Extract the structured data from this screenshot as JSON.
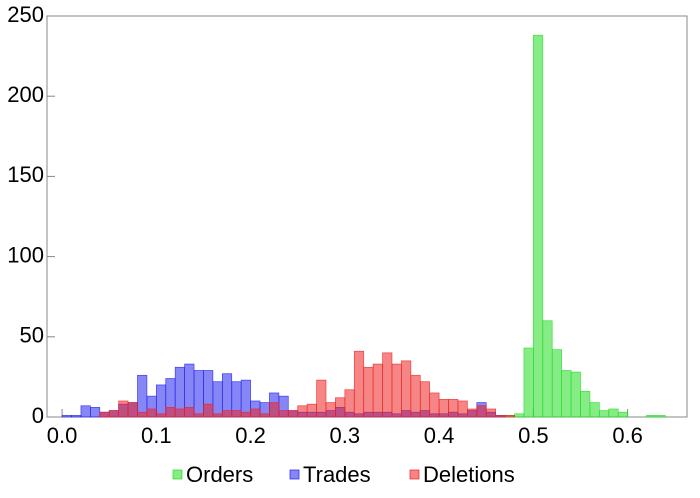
{
  "chart_data": {
    "type": "histogram",
    "bins": [
      0,
      0.01,
      0.02,
      0.03,
      0.04,
      0.05,
      0.06,
      0.07,
      0.08,
      0.09,
      0.1,
      0.11,
      0.12,
      0.13,
      0.14,
      0.15,
      0.16,
      0.17,
      0.18,
      0.19,
      0.2,
      0.21,
      0.22,
      0.23,
      0.24,
      0.25,
      0.26,
      0.27,
      0.28,
      0.29,
      0.3,
      0.31,
      0.32,
      0.33,
      0.34,
      0.35,
      0.36,
      0.37,
      0.38,
      0.39,
      0.4,
      0.41,
      0.42,
      0.43,
      0.44,
      0.45,
      0.46,
      0.47,
      0.48,
      0.49,
      0.5,
      0.51,
      0.52,
      0.53,
      0.54,
      0.55,
      0.56,
      0.57,
      0.58,
      0.59,
      0.6,
      0.61,
      0.62,
      0.63,
      0.64
    ],
    "series": [
      {
        "name": "Orders",
        "color": "#22dd22",
        "values": [
          0,
          0,
          0,
          0,
          0,
          0,
          0,
          0,
          0,
          0,
          0,
          0,
          0,
          0,
          0,
          0,
          0,
          0,
          0,
          0,
          0,
          0,
          0,
          0,
          0,
          0,
          0,
          0,
          0,
          0,
          0,
          0,
          0,
          0,
          0,
          0,
          0,
          0,
          0,
          0,
          0,
          0,
          0,
          0,
          0,
          0,
          0,
          1,
          2,
          43,
          238,
          60,
          42,
          29,
          28,
          16,
          9,
          4,
          5,
          3,
          0,
          0,
          1,
          1
        ]
      },
      {
        "name": "Trades",
        "color": "#2222ee",
        "values": [
          1,
          1,
          7,
          6,
          3,
          4,
          8,
          9,
          26,
          13,
          20,
          24,
          31,
          33,
          29,
          29,
          22,
          27,
          22,
          23,
          10,
          9,
          15,
          13,
          4,
          3,
          3,
          3,
          4,
          6,
          3,
          2,
          3,
          3,
          3,
          2,
          4,
          3,
          4,
          2,
          2,
          3,
          2,
          4,
          9,
          3,
          1,
          0,
          0,
          0,
          0,
          0,
          0,
          0,
          0,
          0,
          0,
          0,
          0,
          0,
          0,
          0,
          0,
          0
        ]
      },
      {
        "name": "Deletions",
        "color": "#ee2222",
        "values": [
          0,
          0,
          0,
          0,
          3,
          4,
          10,
          9,
          3,
          5,
          2,
          6,
          5,
          6,
          2,
          8,
          2,
          4,
          4,
          3,
          5,
          2,
          9,
          4,
          4,
          7,
          8,
          23,
          9,
          12,
          17,
          41,
          31,
          33,
          40,
          33,
          35,
          26,
          22,
          15,
          11,
          11,
          10,
          5,
          7,
          5,
          1,
          1,
          0,
          0,
          0,
          0,
          0,
          0,
          0,
          0,
          0,
          0,
          0,
          0,
          0,
          0,
          0,
          0
        ]
      }
    ],
    "xlim": [
      -0.016,
      0.663
    ],
    "ylim": [
      0,
      250
    ],
    "xticks": [
      {
        "value": 0,
        "label": "0.0"
      },
      0.1,
      0.2,
      0.3,
      0.4,
      0.5,
      0.6
    ],
    "yticks": [
      0,
      50,
      100,
      150,
      200,
      250
    ],
    "legend": "bottom"
  }
}
